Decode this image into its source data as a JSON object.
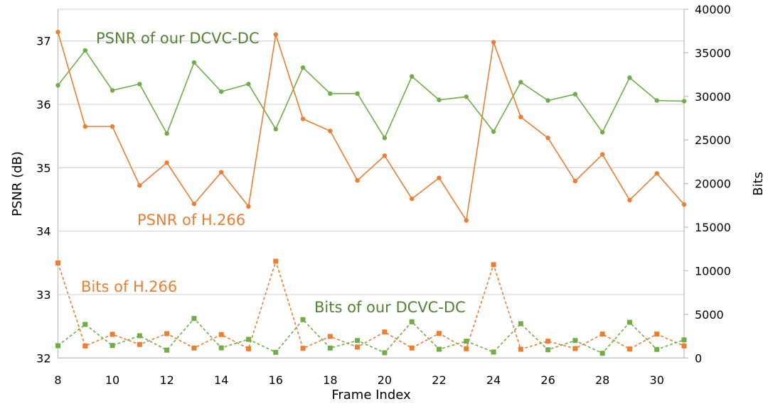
{
  "chart_data": {
    "type": "line",
    "xlabel": "Frame Index",
    "ylabel": "PSNR (dB)",
    "y2label": "Bits",
    "x": [
      8,
      9,
      10,
      11,
      12,
      13,
      14,
      15,
      16,
      17,
      18,
      19,
      20,
      21,
      22,
      23,
      24,
      25,
      26,
      27,
      28,
      29,
      30,
      31
    ],
    "xlim": [
      8,
      31
    ],
    "xticks": [
      8,
      10,
      12,
      14,
      16,
      18,
      20,
      22,
      24,
      26,
      28,
      30
    ],
    "ylim": [
      32,
      37.5
    ],
    "yticks": [
      32,
      33,
      34,
      35,
      36,
      37
    ],
    "y2lim": [
      0,
      40000
    ],
    "y2ticks": [
      0,
      5000,
      10000,
      15000,
      20000,
      25000,
      30000,
      35000,
      40000
    ],
    "grid": true,
    "series": [
      {
        "name": "PSNR of our DCVC-DC",
        "axis": "left",
        "style": "solid",
        "marker": "circle",
        "color": "#70AD47",
        "values": [
          36.3,
          36.85,
          36.22,
          36.32,
          35.54,
          36.66,
          36.2,
          36.32,
          35.61,
          36.58,
          36.17,
          36.17,
          35.47,
          36.44,
          36.07,
          36.12,
          35.57,
          36.35,
          36.06,
          36.16,
          35.56,
          36.42,
          36.06,
          36.05
        ]
      },
      {
        "name": "PSNR of H.266",
        "axis": "left",
        "style": "solid",
        "marker": "circle",
        "color": "#ED7D31",
        "values": [
          37.14,
          35.65,
          35.65,
          34.72,
          35.08,
          34.43,
          34.93,
          34.39,
          37.1,
          35.77,
          35.58,
          34.8,
          35.19,
          34.51,
          34.84,
          34.17,
          36.98,
          35.8,
          35.47,
          34.79,
          35.21,
          34.49,
          34.91,
          34.42
        ]
      },
      {
        "name": "Bits of H.266",
        "axis": "right",
        "style": "dashed",
        "marker": "square",
        "color": "#ED7D31",
        "values": [
          10900,
          1380,
          2710,
          1550,
          2790,
          1140,
          2690,
          1060,
          11100,
          1110,
          2470,
          1250,
          2980,
          1140,
          2820,
          1060,
          10700,
          1000,
          1920,
          1080,
          2740,
          1030,
          2740,
          1380
        ]
      },
      {
        "name": "Bits of our DCVC-DC",
        "axis": "right",
        "style": "dashed",
        "marker": "square",
        "color": "#70AD47",
        "values": [
          1410,
          3850,
          1430,
          2550,
          900,
          4530,
          1160,
          2140,
          650,
          4400,
          1140,
          2000,
          600,
          4150,
          1000,
          1920,
          680,
          3930,
          940,
          2000,
          540,
          4090,
          980,
          2080
        ]
      }
    ],
    "annotation_colors": {
      "green": "#548235",
      "orange": "#ED7D31"
    }
  }
}
